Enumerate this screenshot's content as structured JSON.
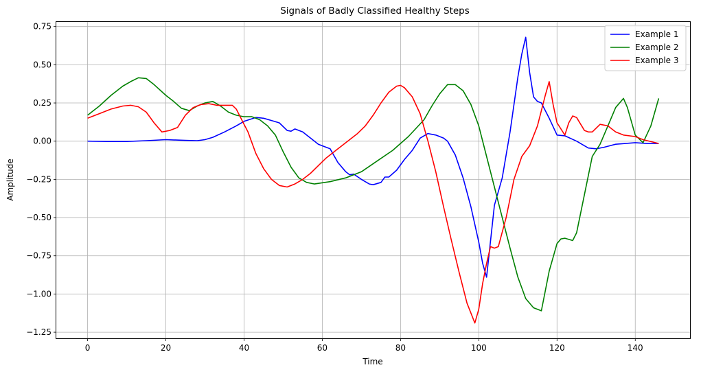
{
  "chart_data": {
    "type": "line",
    "title": "Signals of Badly Classified Healthy Steps",
    "xlabel": "Time",
    "ylabel": "Amplitude",
    "xlim": [
      -8,
      154
    ],
    "ylim": [
      -1.29,
      0.78
    ],
    "xticks": [
      0,
      20,
      40,
      60,
      80,
      100,
      120,
      140
    ],
    "yticks": [
      -1.25,
      -1.0,
      -0.75,
      -0.5,
      -0.25,
      0.0,
      0.25,
      0.5,
      0.75
    ],
    "ytick_labels": [
      "−1.25",
      "−1.00",
      "−0.75",
      "−0.50",
      "−0.25",
      "0.00",
      "0.25",
      "0.50",
      "0.75"
    ],
    "grid": true,
    "legend_position": "top-right",
    "series": [
      {
        "name": "Example 1",
        "color": "#0000ff",
        "points": [
          [
            0,
            0.0
          ],
          [
            5,
            -0.002
          ],
          [
            10,
            -0.002
          ],
          [
            15,
            0.003
          ],
          [
            20,
            0.01
          ],
          [
            25,
            0.005
          ],
          [
            28,
            0.003
          ],
          [
            30,
            0.01
          ],
          [
            32,
            0.025
          ],
          [
            35,
            0.06
          ],
          [
            38,
            0.1
          ],
          [
            40,
            0.13
          ],
          [
            43,
            0.155
          ],
          [
            45,
            0.15
          ],
          [
            47,
            0.135
          ],
          [
            49,
            0.12
          ],
          [
            51,
            0.07
          ],
          [
            52,
            0.065
          ],
          [
            53,
            0.08
          ],
          [
            55,
            0.06
          ],
          [
            57,
            0.02
          ],
          [
            59,
            -0.02
          ],
          [
            61,
            -0.04
          ],
          [
            62,
            -0.05
          ],
          [
            64,
            -0.14
          ],
          [
            66,
            -0.2
          ],
          [
            67,
            -0.22
          ],
          [
            68,
            -0.215
          ],
          [
            70,
            -0.25
          ],
          [
            72,
            -0.28
          ],
          [
            73,
            -0.285
          ],
          [
            75,
            -0.27
          ],
          [
            76,
            -0.235
          ],
          [
            77,
            -0.235
          ],
          [
            79,
            -0.19
          ],
          [
            81,
            -0.12
          ],
          [
            83,
            -0.06
          ],
          [
            85,
            0.02
          ],
          [
            87,
            0.05
          ],
          [
            89,
            0.04
          ],
          [
            91,
            0.02
          ],
          [
            92,
            0.0
          ],
          [
            94,
            -0.09
          ],
          [
            96,
            -0.24
          ],
          [
            98,
            -0.43
          ],
          [
            100,
            -0.66
          ],
          [
            101,
            -0.8
          ],
          [
            102,
            -0.89
          ],
          [
            104,
            -0.42
          ],
          [
            106,
            -0.24
          ],
          [
            108,
            0.06
          ],
          [
            110,
            0.42
          ],
          [
            111,
            0.57
          ],
          [
            112,
            0.68
          ],
          [
            113,
            0.45
          ],
          [
            114,
            0.29
          ],
          [
            115,
            0.26
          ],
          [
            116,
            0.25
          ],
          [
            118,
            0.15
          ],
          [
            120,
            0.04
          ],
          [
            122,
            0.035
          ],
          [
            125,
            0.0
          ],
          [
            128,
            -0.045
          ],
          [
            130,
            -0.05
          ],
          [
            132,
            -0.04
          ],
          [
            135,
            -0.02
          ],
          [
            140,
            -0.01
          ],
          [
            143,
            -0.015
          ],
          [
            146,
            -0.015
          ]
        ]
      },
      {
        "name": "Example 2",
        "color": "#008000",
        "points": [
          [
            0,
            0.17
          ],
          [
            3,
            0.23
          ],
          [
            6,
            0.3
          ],
          [
            9,
            0.36
          ],
          [
            11,
            0.39
          ],
          [
            13,
            0.415
          ],
          [
            15,
            0.41
          ],
          [
            17,
            0.37
          ],
          [
            20,
            0.3
          ],
          [
            22,
            0.26
          ],
          [
            24,
            0.215
          ],
          [
            26,
            0.2
          ],
          [
            28,
            0.23
          ],
          [
            30,
            0.25
          ],
          [
            32,
            0.26
          ],
          [
            34,
            0.23
          ],
          [
            36,
            0.19
          ],
          [
            38,
            0.17
          ],
          [
            40,
            0.16
          ],
          [
            42,
            0.16
          ],
          [
            44,
            0.14
          ],
          [
            46,
            0.1
          ],
          [
            48,
            0.04
          ],
          [
            50,
            -0.07
          ],
          [
            52,
            -0.17
          ],
          [
            54,
            -0.24
          ],
          [
            56,
            -0.27
          ],
          [
            58,
            -0.28
          ],
          [
            62,
            -0.265
          ],
          [
            66,
            -0.24
          ],
          [
            70,
            -0.2
          ],
          [
            74,
            -0.13
          ],
          [
            78,
            -0.06
          ],
          [
            82,
            0.03
          ],
          [
            86,
            0.14
          ],
          [
            88,
            0.23
          ],
          [
            90,
            0.31
          ],
          [
            92,
            0.37
          ],
          [
            94,
            0.37
          ],
          [
            96,
            0.33
          ],
          [
            98,
            0.24
          ],
          [
            100,
            0.1
          ],
          [
            102,
            -0.1
          ],
          [
            104,
            -0.3
          ],
          [
            106,
            -0.5
          ],
          [
            108,
            -0.7
          ],
          [
            110,
            -0.89
          ],
          [
            112,
            -1.03
          ],
          [
            114,
            -1.09
          ],
          [
            116,
            -1.11
          ],
          [
            118,
            -0.85
          ],
          [
            120,
            -0.67
          ],
          [
            121,
            -0.64
          ],
          [
            122,
            -0.635
          ],
          [
            124,
            -0.65
          ],
          [
            125,
            -0.6
          ],
          [
            127,
            -0.35
          ],
          [
            129,
            -0.1
          ],
          [
            131,
            -0.02
          ],
          [
            133,
            0.1
          ],
          [
            135,
            0.22
          ],
          [
            137,
            0.28
          ],
          [
            138,
            0.22
          ],
          [
            140,
            0.04
          ],
          [
            142,
            -0.01
          ],
          [
            144,
            0.1
          ],
          [
            146,
            0.28
          ]
        ]
      },
      {
        "name": "Example 3",
        "color": "#ff0000",
        "points": [
          [
            0,
            0.15
          ],
          [
            3,
            0.18
          ],
          [
            6,
            0.21
          ],
          [
            9,
            0.23
          ],
          [
            11,
            0.235
          ],
          [
            13,
            0.225
          ],
          [
            15,
            0.19
          ],
          [
            17,
            0.12
          ],
          [
            19,
            0.06
          ],
          [
            21,
            0.07
          ],
          [
            23,
            0.09
          ],
          [
            25,
            0.17
          ],
          [
            27,
            0.22
          ],
          [
            29,
            0.24
          ],
          [
            31,
            0.245
          ],
          [
            33,
            0.235
          ],
          [
            35,
            0.235
          ],
          [
            37,
            0.235
          ],
          [
            38,
            0.21
          ],
          [
            40,
            0.11
          ],
          [
            41,
            0.06
          ],
          [
            43,
            -0.08
          ],
          [
            45,
            -0.18
          ],
          [
            47,
            -0.25
          ],
          [
            49,
            -0.29
          ],
          [
            51,
            -0.3
          ],
          [
            53,
            -0.28
          ],
          [
            55,
            -0.25
          ],
          [
            57,
            -0.21
          ],
          [
            59,
            -0.16
          ],
          [
            61,
            -0.11
          ],
          [
            63,
            -0.07
          ],
          [
            65,
            -0.03
          ],
          [
            67,
            0.01
          ],
          [
            69,
            0.05
          ],
          [
            71,
            0.1
          ],
          [
            73,
            0.17
          ],
          [
            75,
            0.25
          ],
          [
            77,
            0.32
          ],
          [
            79,
            0.36
          ],
          [
            80,
            0.365
          ],
          [
            81,
            0.35
          ],
          [
            83,
            0.29
          ],
          [
            85,
            0.18
          ],
          [
            87,
            0.0
          ],
          [
            89,
            -0.2
          ],
          [
            91,
            -0.43
          ],
          [
            93,
            -0.65
          ],
          [
            95,
            -0.86
          ],
          [
            97,
            -1.06
          ],
          [
            99,
            -1.19
          ],
          [
            100,
            -1.1
          ],
          [
            101,
            -0.93
          ],
          [
            102,
            -0.8
          ],
          [
            103,
            -0.69
          ],
          [
            104,
            -0.7
          ],
          [
            105,
            -0.69
          ],
          [
            107,
            -0.5
          ],
          [
            109,
            -0.25
          ],
          [
            111,
            -0.1
          ],
          [
            113,
            -0.03
          ],
          [
            115,
            0.1
          ],
          [
            117,
            0.3
          ],
          [
            118,
            0.39
          ],
          [
            119,
            0.24
          ],
          [
            120,
            0.12
          ],
          [
            122,
            0.04
          ],
          [
            123,
            0.12
          ],
          [
            124,
            0.165
          ],
          [
            125,
            0.155
          ],
          [
            127,
            0.07
          ],
          [
            128,
            0.06
          ],
          [
            129,
            0.06
          ],
          [
            131,
            0.11
          ],
          [
            133,
            0.1
          ],
          [
            135,
            0.06
          ],
          [
            137,
            0.04
          ],
          [
            140,
            0.03
          ],
          [
            142,
            0.01
          ],
          [
            146,
            -0.015
          ]
        ]
      }
    ]
  }
}
